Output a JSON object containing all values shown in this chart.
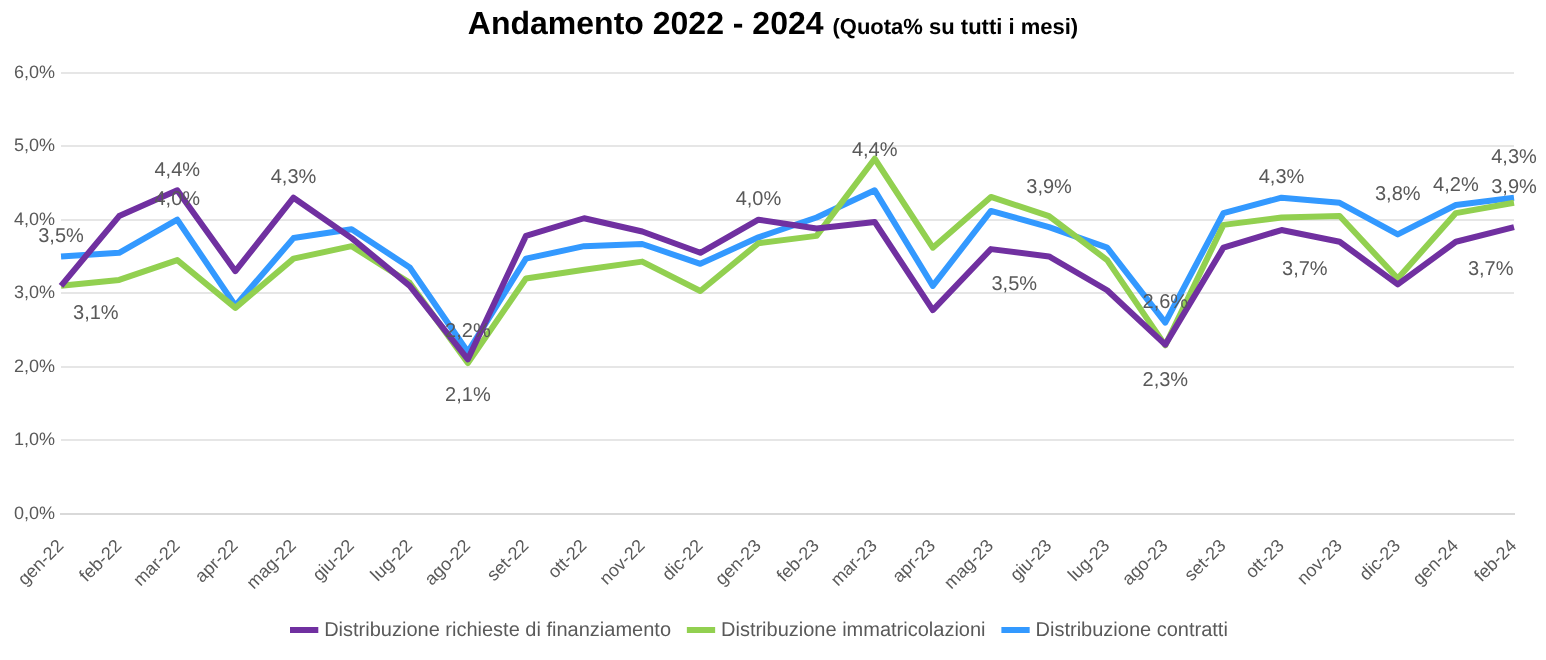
{
  "chart_data": {
    "type": "line",
    "title": "Andamento 2022 - 2024",
    "subtitle": "(Quota% su tutti i mesi)",
    "categories": [
      "gen-22",
      "feb-22",
      "mar-22",
      "apr-22",
      "mag-22",
      "giu-22",
      "lug-22",
      "ago-22",
      "set-22",
      "ott-22",
      "nov-22",
      "dic-22",
      "gen-23",
      "feb-23",
      "mar-23",
      "apr-23",
      "mag-23",
      "giu-23",
      "lug-23",
      "ago-23",
      "set-23",
      "ott-23",
      "nov-23",
      "dic-23",
      "gen-24",
      "feb-24"
    ],
    "series": [
      {
        "name": "Distribuzione richieste di finanziamento",
        "color": "#7030a0",
        "values": [
          3.1,
          4.05,
          4.4,
          3.3,
          4.3,
          3.75,
          3.1,
          2.1,
          3.78,
          4.02,
          3.84,
          3.55,
          4.0,
          3.88,
          3.97,
          2.77,
          3.6,
          3.5,
          3.04,
          2.3,
          3.62,
          3.86,
          3.7,
          3.12,
          3.7,
          3.9
        ],
        "value_labels": [
          "3,1%",
          null,
          "4,4%",
          null,
          "4,3%",
          null,
          null,
          "2,1%",
          null,
          null,
          null,
          null,
          "4,0%",
          null,
          null,
          null,
          null,
          "3,5%",
          null,
          "2,3%",
          null,
          null,
          "3,7%",
          null,
          "3,7%",
          "3,9%"
        ]
      },
      {
        "name": "Distribuzione immatricolazioni",
        "color": "#92d050",
        "values": [
          3.1,
          3.18,
          3.45,
          2.8,
          3.47,
          3.64,
          3.14,
          2.05,
          3.2,
          3.32,
          3.43,
          3.03,
          3.68,
          3.78,
          4.83,
          3.62,
          4.31,
          4.05,
          3.45,
          2.29,
          3.93,
          4.03,
          4.05,
          3.2,
          4.09,
          4.23
        ]
      },
      {
        "name": "Distribuzione contratti",
        "color": "#3399ff",
        "values": [
          3.5,
          3.55,
          4.0,
          2.83,
          3.75,
          3.87,
          3.35,
          2.2,
          3.47,
          3.64,
          3.67,
          3.4,
          3.76,
          4.03,
          4.4,
          3.1,
          4.12,
          3.9,
          3.62,
          2.6,
          4.09,
          4.3,
          4.23,
          3.8,
          4.2,
          4.3
        ],
        "value_labels": [
          "3,5%",
          null,
          "4,0%",
          null,
          null,
          null,
          null,
          "2,2%",
          null,
          null,
          null,
          null,
          null,
          null,
          "4,4%",
          null,
          null,
          "3,9%",
          null,
          "2,6%",
          null,
          "4,3%",
          null,
          "3,8%",
          "4,2%",
          "4,3%"
        ]
      }
    ],
    "ylim": [
      0,
      6
    ],
    "yticks": [
      {
        "value": 0,
        "label": "0,0%"
      },
      {
        "value": 1,
        "label": "1,0%"
      },
      {
        "value": 2,
        "label": "2,0%"
      },
      {
        "value": 3,
        "label": "3,0%"
      },
      {
        "value": 4,
        "label": "4,0%"
      },
      {
        "value": 5,
        "label": "5,0%"
      },
      {
        "value": 6,
        "label": "6,0%"
      }
    ],
    "grid": "y",
    "legend": "bottom",
    "marker": "none",
    "line_style": "solid"
  }
}
